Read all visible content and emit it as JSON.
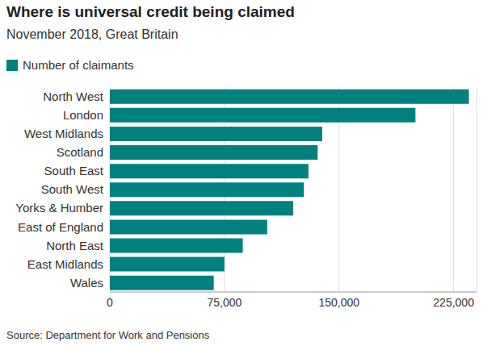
{
  "chart_data": {
    "type": "bar",
    "title": "Where is universal credit being claimed",
    "subtitle": "November 2018, Great Britain",
    "source": "Source: Department for Work and Pensions",
    "orientation": "horizontal",
    "categories": [
      "North West",
      "London",
      "West Midlands",
      "Scotland",
      "South East",
      "South West",
      "Yorks & Humber",
      "East of England",
      "North East",
      "East Midlands",
      "Wales"
    ],
    "series": [
      {
        "name": "Number of claimants",
        "color": "#00807f",
        "values": [
          235000,
          200000,
          139000,
          136000,
          130000,
          127000,
          120000,
          103000,
          87000,
          75000,
          68000
        ]
      }
    ],
    "xlim": [
      0,
      240000
    ],
    "xticks": [
      0,
      {
        "value": 75000,
        "label": "75,000"
      },
      {
        "value": 150000,
        "label": "150,000"
      },
      {
        "value": 225000,
        "label": "225,000"
      }
    ],
    "grid": true,
    "legend": "top-left"
  }
}
